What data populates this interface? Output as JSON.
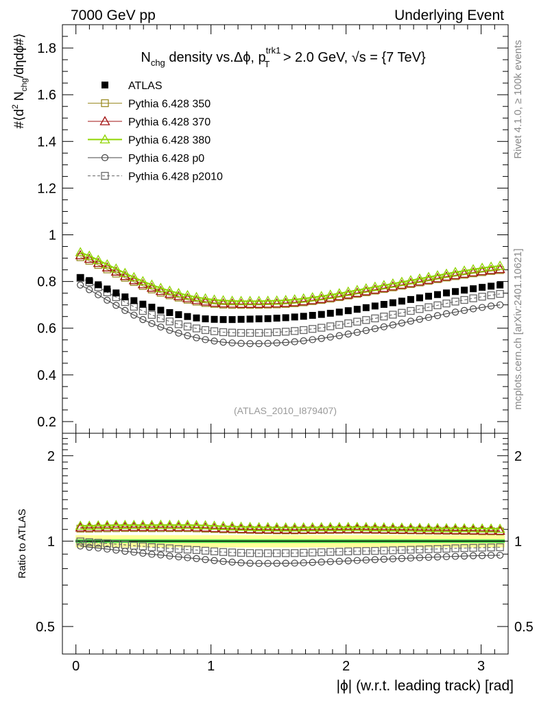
{
  "header": {
    "left": "7000 GeV pp",
    "right": "Underlying Event"
  },
  "side_labels": {
    "rivet": "Rivet 4.1.0, ≥ 100k events",
    "mcplots": "mcplots.cern.ch [arXiv:2401.10621]"
  },
  "chart_data": {
    "type": "scatter",
    "title": {
      "main": "N",
      "main_sub": "chg",
      "rest": " density vs.Δϕ, p",
      "pt_sup": "trk1",
      "pt_sub": "T",
      "tail": " > 2.0 GeV, √s = {7 TeV}"
    },
    "ylabel": "#⟨d² N_chg/dηdϕ#⟩",
    "ylabel_parts": {
      "a": "#⟨d",
      "sup": "2",
      "b": " N",
      "sub": "chg",
      "c": "/dηdϕ#⟩"
    },
    "xlabel": "|ϕ| (w.r.t. leading track) [rad]",
    "ratio_ylabel": "Ratio to ATLAS",
    "analysis_tag": "(ATLAS_2010_I879407)",
    "xlim": [
      -0.1,
      3.2
    ],
    "ylim": [
      0.15,
      1.9
    ],
    "ratio_ylim": [
      0.4,
      2.4
    ],
    "x_ticks": [
      "0",
      "1",
      "2",
      "3"
    ],
    "x_tick_values": [
      0,
      1,
      2,
      3
    ],
    "y_ticks": [
      "0.2",
      "0.4",
      "0.6",
      "0.8",
      "1",
      "1.2",
      "1.4",
      "1.6",
      "1.8"
    ],
    "y_tick_values": [
      0.2,
      0.4,
      0.6,
      0.8,
      1.0,
      1.2,
      1.4,
      1.6,
      1.8
    ],
    "ratio_ticks": [
      "0.5",
      "1",
      "2"
    ],
    "ratio_tick_values": [
      0.5,
      1,
      2
    ],
    "x": [
      0.0331,
      0.0992,
      0.1653,
      0.2314,
      0.2975,
      0.3636,
      0.4297,
      0.4958,
      0.5619,
      0.628,
      0.6941,
      0.7602,
      0.8263,
      0.8924,
      0.9585,
      1.0246,
      1.0907,
      1.1568,
      1.2229,
      1.289,
      1.3551,
      1.4212,
      1.4873,
      1.5534,
      1.6195,
      1.6856,
      1.7517,
      1.8178,
      1.8839,
      1.95,
      2.0161,
      2.0822,
      2.1483,
      2.2144,
      2.2805,
      2.3466,
      2.4127,
      2.4788,
      2.5449,
      2.611,
      2.6771,
      2.7432,
      2.8093,
      2.8754,
      2.9415,
      3.0076,
      3.0737,
      3.1398
    ],
    "series": [
      {
        "name": "ATLAS",
        "style": "ATLAS",
        "color": "#000000",
        "values": [
          0.817,
          0.804,
          0.786,
          0.768,
          0.751,
          0.734,
          0.718,
          0.703,
          0.69,
          0.677,
          0.667,
          0.658,
          0.65,
          0.644,
          0.64,
          0.638,
          0.637,
          0.637,
          0.638,
          0.639,
          0.64,
          0.641,
          0.643,
          0.645,
          0.648,
          0.651,
          0.655,
          0.659,
          0.664,
          0.669,
          0.675,
          0.681,
          0.688,
          0.695,
          0.702,
          0.709,
          0.716,
          0.723,
          0.73,
          0.737,
          0.744,
          0.751,
          0.757,
          0.763,
          0.769,
          0.775,
          0.78,
          0.785
        ]
      },
      {
        "name": "Pythia 6.428 350",
        "style": "square-open",
        "color": "#9a8a22",
        "values": [
          0.904,
          0.889,
          0.871,
          0.852,
          0.834,
          0.816,
          0.798,
          0.781,
          0.766,
          0.752,
          0.741,
          0.731,
          0.722,
          0.714,
          0.708,
          0.704,
          0.701,
          0.7,
          0.7,
          0.7,
          0.7,
          0.701,
          0.702,
          0.704,
          0.707,
          0.711,
          0.716,
          0.721,
          0.727,
          0.733,
          0.74,
          0.747,
          0.754,
          0.761,
          0.768,
          0.775,
          0.782,
          0.789,
          0.796,
          0.803,
          0.81,
          0.817,
          0.823,
          0.829,
          0.835,
          0.84,
          0.845,
          0.849
        ]
      },
      {
        "name": "Pythia 6.428 370",
        "style": "triangle-red",
        "color": "#a01010",
        "values": [
          0.912,
          0.897,
          0.879,
          0.86,
          0.842,
          0.823,
          0.805,
          0.788,
          0.773,
          0.759,
          0.747,
          0.737,
          0.728,
          0.72,
          0.714,
          0.709,
          0.706,
          0.705,
          0.704,
          0.704,
          0.704,
          0.705,
          0.706,
          0.708,
          0.711,
          0.715,
          0.72,
          0.725,
          0.731,
          0.737,
          0.744,
          0.751,
          0.758,
          0.765,
          0.772,
          0.779,
          0.786,
          0.793,
          0.8,
          0.807,
          0.814,
          0.821,
          0.827,
          0.833,
          0.839,
          0.844,
          0.849,
          0.853
        ]
      },
      {
        "name": "Pythia 6.428 380",
        "style": "triangle-green",
        "color": "#8fd400",
        "values": [
          0.925,
          0.91,
          0.892,
          0.873,
          0.855,
          0.836,
          0.818,
          0.801,
          0.786,
          0.772,
          0.76,
          0.75,
          0.741,
          0.733,
          0.727,
          0.722,
          0.719,
          0.717,
          0.716,
          0.716,
          0.716,
          0.717,
          0.718,
          0.72,
          0.723,
          0.727,
          0.732,
          0.737,
          0.743,
          0.749,
          0.756,
          0.763,
          0.77,
          0.777,
          0.784,
          0.791,
          0.798,
          0.805,
          0.812,
          0.819,
          0.826,
          0.833,
          0.84,
          0.846,
          0.852,
          0.858,
          0.863,
          0.867
        ]
      },
      {
        "name": "Pythia 6.428 p0",
        "style": "circle-open",
        "color": "#444444",
        "values": [
          0.785,
          0.765,
          0.743,
          0.72,
          0.698,
          0.676,
          0.656,
          0.637,
          0.62,
          0.605,
          0.591,
          0.579,
          0.568,
          0.559,
          0.551,
          0.545,
          0.54,
          0.537,
          0.535,
          0.534,
          0.534,
          0.535,
          0.537,
          0.539,
          0.542,
          0.546,
          0.551,
          0.556,
          0.562,
          0.568,
          0.575,
          0.582,
          0.59,
          0.598,
          0.606,
          0.614,
          0.622,
          0.63,
          0.638,
          0.646,
          0.654,
          0.662,
          0.669,
          0.676,
          0.683,
          0.689,
          0.695,
          0.7
        ]
      },
      {
        "name": "Pythia 6.428 p2010",
        "style": "square-dashed",
        "color": "#666666",
        "values": [
          0.815,
          0.797,
          0.776,
          0.754,
          0.733,
          0.712,
          0.692,
          0.674,
          0.657,
          0.642,
          0.629,
          0.617,
          0.607,
          0.599,
          0.592,
          0.587,
          0.583,
          0.581,
          0.58,
          0.58,
          0.58,
          0.581,
          0.583,
          0.585,
          0.588,
          0.592,
          0.597,
          0.602,
          0.608,
          0.614,
          0.621,
          0.628,
          0.635,
          0.642,
          0.65,
          0.658,
          0.666,
          0.674,
          0.682,
          0.69,
          0.698,
          0.706,
          0.714,
          0.721,
          0.728,
          0.735,
          0.741,
          0.747
        ]
      }
    ],
    "band": {
      "outer_color": "#ffff99",
      "inner_color": "#55dd55",
      "outer_frac": 0.05,
      "inner_frac": 0.015
    }
  }
}
